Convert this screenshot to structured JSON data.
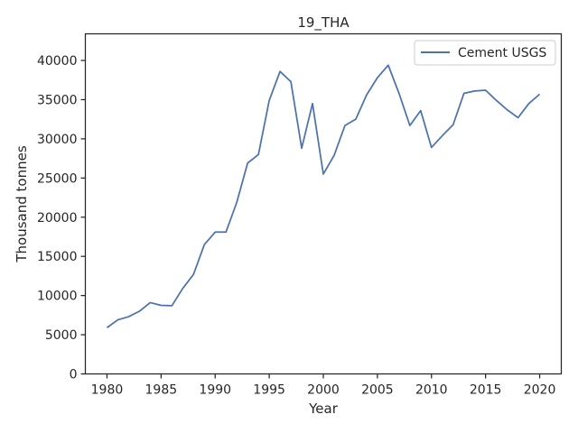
{
  "chart_data": {
    "type": "line",
    "title": "19_THA",
    "xlabel": "Year",
    "ylabel": "Thousand tonnes",
    "xlim": [
      1978,
      2022
    ],
    "ylim": [
      0,
      43400
    ],
    "xticks": [
      1980,
      1985,
      1990,
      1995,
      2000,
      2005,
      2010,
      2015,
      2020
    ],
    "yticks": [
      0,
      5000,
      10000,
      15000,
      20000,
      25000,
      30000,
      35000,
      40000
    ],
    "grid": false,
    "legend_position": "top-right",
    "series": [
      {
        "name": "Cement USGS",
        "color": "#4c72b0",
        "x": [
          1980,
          1981,
          1982,
          1983,
          1984,
          1985,
          1986,
          1987,
          1988,
          1989,
          1990,
          1991,
          1992,
          1993,
          1994,
          1995,
          1996,
          1997,
          1998,
          1999,
          2000,
          2001,
          2002,
          2003,
          2004,
          2005,
          2006,
          2007,
          2008,
          2009,
          2010,
          2011,
          2012,
          2013,
          2014,
          2015,
          2016,
          2017,
          2018,
          2019,
          2020
        ],
        "y": [
          5900,
          6900,
          7300,
          8000,
          9100,
          8750,
          8700,
          10900,
          12700,
          16500,
          18100,
          18100,
          21900,
          26900,
          28000,
          34900,
          38600,
          37300,
          28800,
          34500,
          25500,
          27900,
          31700,
          32500,
          35600,
          37800,
          39400,
          35800,
          31700,
          33600,
          28900,
          30400,
          31800,
          35800,
          36100,
          36200,
          34900,
          33700,
          32700,
          34500,
          35700
        ]
      }
    ]
  }
}
